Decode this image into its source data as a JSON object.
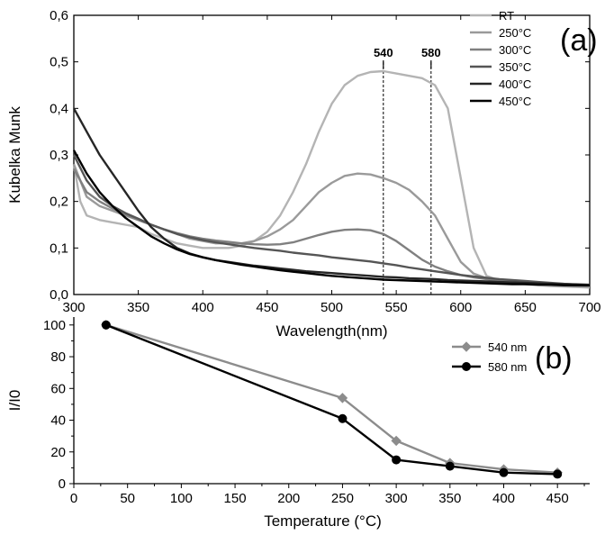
{
  "chart_data": [
    {
      "panel_label": "(a)",
      "type": "line",
      "xlabel": "Wavelength(nm)",
      "ylabel": "Kubelka Munk",
      "xlim": [
        300,
        700
      ],
      "ylim": [
        0,
        0.6
      ],
      "xticks": [
        "300",
        "350",
        "400",
        "450",
        "500",
        "550",
        "600",
        "650",
        "700"
      ],
      "yticks": [
        "0,0",
        "0,1",
        "0,2",
        "0,3",
        "0,4",
        "0,5",
        "0,6"
      ],
      "annotations": [
        {
          "label": "540",
          "x": 540
        },
        {
          "label": "580",
          "x": 577
        }
      ],
      "legend_position": "top-right",
      "grid": false,
      "series": [
        {
          "name": "RT",
          "color": "#b4b4b4",
          "x": [
            300,
            305,
            310,
            320,
            330,
            340,
            350,
            360,
            370,
            380,
            390,
            400,
            410,
            420,
            430,
            440,
            450,
            460,
            470,
            480,
            490,
            500,
            510,
            520,
            530,
            540,
            550,
            560,
            570,
            580,
            590,
            600,
            610,
            620,
            630,
            640,
            650,
            660,
            670,
            680,
            690,
            700
          ],
          "y": [
            0.28,
            0.2,
            0.17,
            0.16,
            0.155,
            0.15,
            0.145,
            0.13,
            0.12,
            0.11,
            0.105,
            0.1,
            0.1,
            0.1,
            0.105,
            0.115,
            0.135,
            0.17,
            0.22,
            0.28,
            0.35,
            0.41,
            0.45,
            0.47,
            0.478,
            0.48,
            0.475,
            0.47,
            0.465,
            0.45,
            0.4,
            0.25,
            0.1,
            0.04,
            0.03,
            0.025,
            0.022,
            0.02,
            0.018,
            0.017,
            0.016,
            0.015
          ]
        },
        {
          "name": "250°C",
          "color": "#9a9a9a",
          "x": [
            300,
            310,
            320,
            330,
            340,
            350,
            360,
            370,
            380,
            390,
            400,
            410,
            420,
            430,
            440,
            450,
            460,
            470,
            480,
            490,
            500,
            510,
            520,
            530,
            540,
            550,
            560,
            570,
            580,
            590,
            600,
            610,
            620,
            630,
            640,
            650,
            660,
            670,
            680,
            690,
            700
          ],
          "y": [
            0.28,
            0.21,
            0.19,
            0.18,
            0.17,
            0.16,
            0.15,
            0.14,
            0.13,
            0.12,
            0.115,
            0.11,
            0.11,
            0.11,
            0.115,
            0.125,
            0.14,
            0.16,
            0.19,
            0.22,
            0.24,
            0.255,
            0.26,
            0.258,
            0.25,
            0.24,
            0.225,
            0.2,
            0.17,
            0.12,
            0.07,
            0.045,
            0.035,
            0.03,
            0.027,
            0.024,
            0.022,
            0.02,
            0.019,
            0.018,
            0.017
          ]
        },
        {
          "name": "300°C",
          "color": "#808080",
          "x": [
            300,
            310,
            320,
            330,
            340,
            350,
            360,
            370,
            380,
            390,
            400,
            410,
            420,
            430,
            440,
            450,
            460,
            470,
            480,
            490,
            500,
            510,
            520,
            530,
            540,
            550,
            560,
            570,
            580,
            590,
            600,
            610,
            620,
            630,
            640,
            650,
            660,
            670,
            680,
            690,
            700
          ],
          "y": [
            0.27,
            0.22,
            0.2,
            0.185,
            0.172,
            0.16,
            0.15,
            0.14,
            0.132,
            0.125,
            0.12,
            0.116,
            0.113,
            0.11,
            0.108,
            0.107,
            0.108,
            0.112,
            0.12,
            0.128,
            0.135,
            0.139,
            0.14,
            0.138,
            0.13,
            0.115,
            0.095,
            0.075,
            0.06,
            0.05,
            0.042,
            0.037,
            0.033,
            0.03,
            0.028,
            0.026,
            0.024,
            0.022,
            0.02,
            0.019,
            0.018
          ]
        },
        {
          "name": "350°C",
          "color": "#555555",
          "x": [
            300,
            310,
            320,
            330,
            340,
            350,
            360,
            370,
            380,
            390,
            400,
            410,
            420,
            430,
            440,
            450,
            460,
            470,
            480,
            490,
            500,
            510,
            520,
            530,
            540,
            550,
            560,
            570,
            580,
            590,
            600,
            610,
            620,
            630,
            640,
            650,
            660,
            670,
            680,
            690,
            700
          ],
          "y": [
            0.3,
            0.245,
            0.21,
            0.19,
            0.175,
            0.163,
            0.15,
            0.14,
            0.13,
            0.123,
            0.117,
            0.112,
            0.108,
            0.104,
            0.1,
            0.097,
            0.094,
            0.09,
            0.087,
            0.084,
            0.08,
            0.077,
            0.074,
            0.071,
            0.067,
            0.063,
            0.058,
            0.054,
            0.05,
            0.046,
            0.042,
            0.039,
            0.036,
            0.033,
            0.031,
            0.029,
            0.027,
            0.025,
            0.023,
            0.022,
            0.021
          ]
        },
        {
          "name": "400°C",
          "color": "#262626",
          "x": [
            300,
            310,
            320,
            330,
            340,
            350,
            360,
            370,
            380,
            390,
            400,
            410,
            420,
            430,
            440,
            450,
            460,
            470,
            480,
            490,
            500,
            510,
            520,
            530,
            540,
            550,
            560,
            570,
            580,
            590,
            600,
            610,
            620,
            630,
            640,
            650,
            660,
            670,
            680,
            690,
            700
          ],
          "y": [
            0.4,
            0.35,
            0.3,
            0.26,
            0.22,
            0.18,
            0.145,
            0.12,
            0.1,
            0.088,
            0.08,
            0.074,
            0.07,
            0.066,
            0.062,
            0.059,
            0.056,
            0.053,
            0.05,
            0.048,
            0.046,
            0.044,
            0.042,
            0.04,
            0.038,
            0.037,
            0.035,
            0.034,
            0.033,
            0.031,
            0.03,
            0.029,
            0.028,
            0.027,
            0.026,
            0.025,
            0.024,
            0.023,
            0.022,
            0.021,
            0.02
          ]
        },
        {
          "name": "450°C",
          "color": "#000000",
          "x": [
            300,
            310,
            320,
            330,
            340,
            350,
            360,
            370,
            380,
            390,
            400,
            410,
            420,
            430,
            440,
            450,
            460,
            470,
            480,
            490,
            500,
            510,
            520,
            530,
            540,
            550,
            560,
            570,
            580,
            590,
            600,
            610,
            620,
            630,
            640,
            650,
            660,
            670,
            680,
            690,
            700
          ],
          "y": [
            0.31,
            0.26,
            0.22,
            0.19,
            0.165,
            0.145,
            0.125,
            0.11,
            0.097,
            0.087,
            0.08,
            0.074,
            0.069,
            0.064,
            0.06,
            0.056,
            0.052,
            0.049,
            0.046,
            0.043,
            0.04,
            0.038,
            0.036,
            0.034,
            0.032,
            0.031,
            0.03,
            0.029,
            0.028,
            0.027,
            0.026,
            0.025,
            0.024,
            0.023,
            0.022,
            0.022,
            0.021,
            0.021,
            0.02,
            0.02,
            0.02
          ]
        }
      ]
    },
    {
      "panel_label": "(b)",
      "type": "line",
      "xlabel": "Temperature (°C)",
      "ylabel": "I/I0",
      "xlim": [
        0,
        480
      ],
      "ylim": [
        0,
        105
      ],
      "xticks": [
        "0",
        "50",
        "100",
        "150",
        "200",
        "250",
        "300",
        "350",
        "400",
        "450"
      ],
      "yticks": [
        "0",
        "20",
        "40",
        "60",
        "80",
        "100"
      ],
      "legend_position": "top-right",
      "grid": false,
      "series": [
        {
          "name": "540 nm",
          "color": "#8c8c8c",
          "marker": "diamond",
          "x": [
            30,
            250,
            300,
            350,
            400,
            450
          ],
          "y": [
            100,
            54,
            27,
            13,
            9,
            7
          ]
        },
        {
          "name": "580 nm",
          "color": "#000000",
          "marker": "circle",
          "x": [
            30,
            250,
            300,
            350,
            400,
            450
          ],
          "y": [
            100,
            41,
            15,
            11,
            7,
            6
          ]
        }
      ]
    }
  ]
}
